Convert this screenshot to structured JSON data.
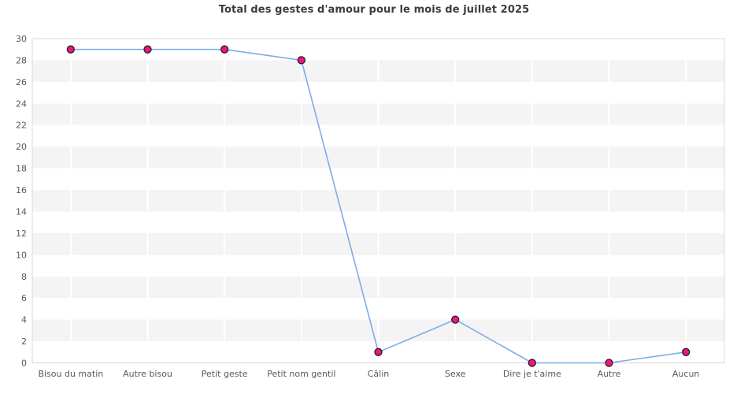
{
  "chart_data": {
    "type": "line",
    "title": "Total des gestes d'amour pour le mois de juillet 2025",
    "categories": [
      "Bisou du matin",
      "Autre bisou",
      "Petit geste",
      "Petit nom gentil",
      "Câlin",
      "Sexe",
      "Dire je t'aime",
      "Autre",
      "Aucun"
    ],
    "values": [
      29,
      29,
      29,
      28,
      1,
      4,
      0,
      0,
      1
    ],
    "series_name": "Total des gestes d'amour",
    "xlabel": "",
    "ylabel": "",
    "ylim": [
      0,
      30
    ],
    "ytick_step": 2,
    "y_tick_labels": [
      "0",
      "2",
      "4",
      "6",
      "8",
      "10",
      "12",
      "14",
      "16",
      "18",
      "20",
      "22",
      "24",
      "26",
      "28",
      "30"
    ],
    "grid": "alternating horizontal stripes every 2 units + white vertical gridlines at category centers",
    "legend_position": "none",
    "colors": {
      "background": "#ffffff",
      "stripe": "#f4f4f4",
      "plot_border": "#d8d8d8",
      "vertical_gridline": "#ffffff",
      "line": "#7caee3",
      "marker_fill": "#f01480",
      "marker_stroke": "#1f1f1f",
      "axis_text": "#595959",
      "title_text": "#3c3c3c"
    }
  }
}
